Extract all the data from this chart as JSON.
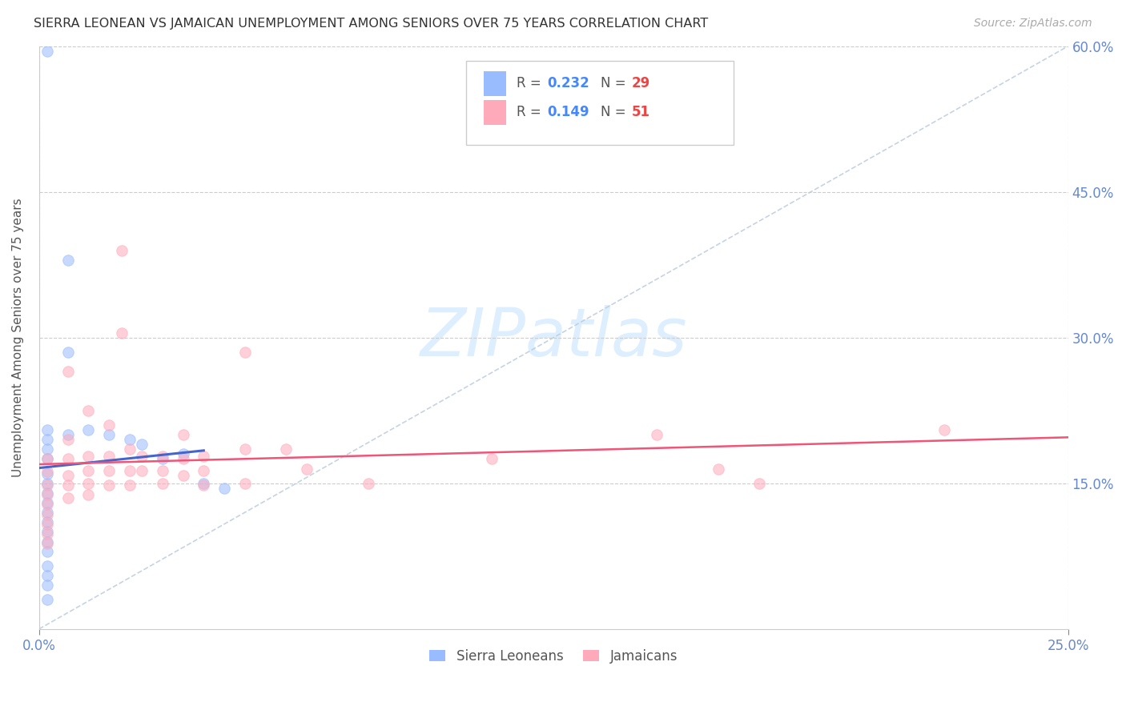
{
  "title": "SIERRA LEONEAN VS JAMAICAN UNEMPLOYMENT AMONG SENIORS OVER 75 YEARS CORRELATION CHART",
  "source": "Source: ZipAtlas.com",
  "ylabel": "Unemployment Among Seniors over 75 years",
  "xlim": [
    0.0,
    0.25
  ],
  "ylim": [
    0.0,
    0.6
  ],
  "xticks": [
    0.0,
    0.25
  ],
  "xtick_labels": [
    "0.0%",
    "25.0%"
  ],
  "yticks_right": [
    0.15,
    0.3,
    0.45,
    0.6
  ],
  "ytick_labels_right": [
    "15.0%",
    "30.0%",
    "45.0%",
    "60.0%"
  ],
  "background_color": "#ffffff",
  "grid_color": "#cccccc",
  "blue_color": "#99bbff",
  "pink_color": "#ffaabb",
  "blue_line_color": "#4466cc",
  "pink_line_color": "#ee5577",
  "axis_label_color": "#6688cc",
  "legend_R_color": "#4488ff",
  "legend_N_color": "#ee4444",
  "sierra_R": 0.232,
  "sierra_N": 29,
  "jamaican_R": 0.149,
  "jamaican_N": 51,
  "sierra_points": [
    [
      0.002,
      0.595
    ],
    [
      0.002,
      0.205
    ],
    [
      0.002,
      0.195
    ],
    [
      0.002,
      0.185
    ],
    [
      0.002,
      0.175
    ],
    [
      0.002,
      0.16
    ],
    [
      0.002,
      0.15
    ],
    [
      0.002,
      0.14
    ],
    [
      0.002,
      0.13
    ],
    [
      0.002,
      0.12
    ],
    [
      0.002,
      0.11
    ],
    [
      0.002,
      0.1
    ],
    [
      0.002,
      0.09
    ],
    [
      0.002,
      0.08
    ],
    [
      0.002,
      0.065
    ],
    [
      0.002,
      0.055
    ],
    [
      0.002,
      0.045
    ],
    [
      0.002,
      0.03
    ],
    [
      0.007,
      0.38
    ],
    [
      0.007,
      0.285
    ],
    [
      0.007,
      0.2
    ],
    [
      0.012,
      0.205
    ],
    [
      0.017,
      0.2
    ],
    [
      0.022,
      0.195
    ],
    [
      0.025,
      0.19
    ],
    [
      0.03,
      0.175
    ],
    [
      0.035,
      0.18
    ],
    [
      0.04,
      0.15
    ],
    [
      0.045,
      0.145
    ]
  ],
  "jamaican_points": [
    [
      0.002,
      0.175
    ],
    [
      0.002,
      0.162
    ],
    [
      0.002,
      0.148
    ],
    [
      0.002,
      0.138
    ],
    [
      0.002,
      0.128
    ],
    [
      0.002,
      0.118
    ],
    [
      0.002,
      0.108
    ],
    [
      0.002,
      0.098
    ],
    [
      0.002,
      0.088
    ],
    [
      0.007,
      0.265
    ],
    [
      0.007,
      0.195
    ],
    [
      0.007,
      0.175
    ],
    [
      0.007,
      0.158
    ],
    [
      0.007,
      0.148
    ],
    [
      0.007,
      0.135
    ],
    [
      0.012,
      0.225
    ],
    [
      0.012,
      0.178
    ],
    [
      0.012,
      0.163
    ],
    [
      0.012,
      0.15
    ],
    [
      0.012,
      0.138
    ],
    [
      0.017,
      0.21
    ],
    [
      0.017,
      0.178
    ],
    [
      0.017,
      0.163
    ],
    [
      0.017,
      0.148
    ],
    [
      0.02,
      0.39
    ],
    [
      0.02,
      0.305
    ],
    [
      0.022,
      0.185
    ],
    [
      0.022,
      0.163
    ],
    [
      0.022,
      0.148
    ],
    [
      0.025,
      0.178
    ],
    [
      0.025,
      0.163
    ],
    [
      0.03,
      0.178
    ],
    [
      0.03,
      0.163
    ],
    [
      0.03,
      0.15
    ],
    [
      0.035,
      0.2
    ],
    [
      0.035,
      0.175
    ],
    [
      0.035,
      0.158
    ],
    [
      0.04,
      0.178
    ],
    [
      0.04,
      0.163
    ],
    [
      0.04,
      0.148
    ],
    [
      0.05,
      0.285
    ],
    [
      0.05,
      0.185
    ],
    [
      0.05,
      0.15
    ],
    [
      0.06,
      0.185
    ],
    [
      0.065,
      0.165
    ],
    [
      0.08,
      0.15
    ],
    [
      0.11,
      0.175
    ],
    [
      0.15,
      0.2
    ],
    [
      0.165,
      0.165
    ],
    [
      0.175,
      0.15
    ],
    [
      0.22,
      0.205
    ]
  ],
  "watermark_text": "ZIPatlas",
  "watermark_color": "#ddeeff",
  "marker_size": 95,
  "marker_alpha": 0.55
}
